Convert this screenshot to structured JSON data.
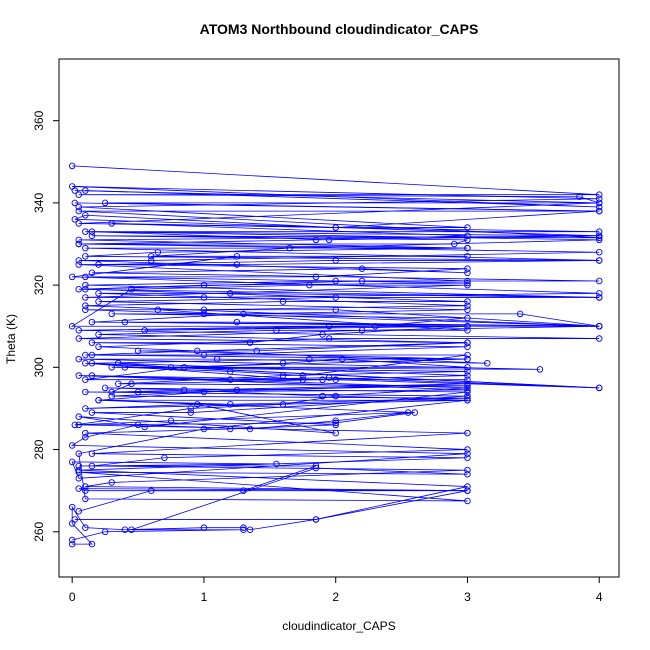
{
  "chart_data": {
    "type": "line",
    "title": "ATOM3 Northbound cloudindicator_CAPS",
    "xlabel": "cloudindicator_CAPS",
    "ylabel": "Theta (K)",
    "xlim": [
      -0.1,
      4.15
    ],
    "ylim": [
      249,
      375
    ],
    "xticks": [
      0,
      1,
      2,
      3,
      4
    ],
    "yticks": [
      260,
      280,
      300,
      320,
      340,
      360
    ],
    "grid": false,
    "legend": "none",
    "series_color": "#0000ff",
    "marker": "open-circle",
    "series": [
      {
        "values": [
          [
            0,
            257
          ],
          [
            0.15,
            257
          ],
          [
            0,
            262
          ],
          [
            0,
            266
          ],
          [
            0.1,
            261
          ],
          [
            0.4,
            260.5
          ],
          [
            1.0,
            261
          ],
          [
            1.3,
            261
          ],
          [
            1.35,
            260.5
          ],
          [
            1.85,
            263
          ],
          [
            3.0,
            270
          ],
          [
            0.05,
            270.5
          ],
          [
            0.1,
            270
          ],
          [
            1.3,
            270
          ],
          [
            1.85,
            276
          ],
          [
            0.05,
            276
          ],
          [
            1.55,
            276.5
          ],
          [
            0,
            277
          ],
          [
            0.05,
            273
          ],
          [
            3.0,
            279
          ],
          [
            0,
            281
          ],
          [
            0.1,
            283
          ],
          [
            0.5,
            286
          ],
          [
            1.35,
            285
          ],
          [
            2.0,
            287
          ],
          [
            2.55,
            289
          ],
          [
            0.75,
            287
          ],
          [
            0.02,
            286
          ],
          [
            0.9,
            290
          ],
          [
            1.6,
            291
          ],
          [
            2.0,
            293
          ],
          [
            3.0,
            292
          ],
          [
            0.2,
            292
          ],
          [
            1.0,
            294
          ],
          [
            3.0,
            296
          ],
          [
            0.3,
            294
          ],
          [
            0.45,
            296
          ],
          [
            1.9,
            297
          ],
          [
            3.0,
            297
          ],
          [
            0.1,
            297
          ],
          [
            0.85,
            300
          ],
          [
            1.6,
            301
          ],
          [
            2.05,
            302
          ],
          [
            3.0,
            300
          ],
          [
            0.4,
            300
          ],
          [
            1.2,
            299
          ],
          [
            1.75,
            298
          ],
          [
            3.0,
            303
          ],
          [
            0.15,
            303
          ],
          [
            1.0,
            303
          ],
          [
            3.0,
            305
          ],
          [
            0.15,
            306
          ],
          [
            1.35,
            306
          ],
          [
            1.9,
            308
          ],
          [
            3.0,
            310
          ],
          [
            0.55,
            309
          ],
          [
            2.3,
            310
          ],
          [
            3.0,
            312
          ],
          [
            0.3,
            313
          ],
          [
            1.0,
            313
          ],
          [
            3.4,
            313
          ],
          [
            4.0,
            310
          ],
          [
            0,
            310
          ],
          [
            0.45,
            319
          ],
          [
            1.8,
            320
          ],
          [
            3.0,
            320
          ],
          [
            0.1,
            317
          ],
          [
            1.0,
            317
          ],
          [
            4.0,
            318
          ],
          [
            0,
            322
          ],
          [
            1.25,
            327
          ],
          [
            3.0,
            327
          ],
          [
            0.6,
            327
          ],
          [
            1.65,
            329
          ],
          [
            4.0,
            331
          ],
          [
            0.15,
            333
          ],
          [
            1.95,
            331
          ],
          [
            3.0,
            332
          ],
          [
            0.3,
            335
          ],
          [
            2.0,
            334
          ],
          [
            4.0,
            338
          ],
          [
            0.25,
            340
          ],
          [
            4.0,
            340
          ],
          [
            3.85,
            341.5
          ],
          [
            0.05,
            342
          ],
          [
            4.0,
            342
          ],
          [
            0,
            349
          ]
        ]
      },
      {
        "values": [
          [
            0,
            258
          ],
          [
            0.25,
            260
          ],
          [
            1.3,
            260.5
          ],
          [
            0.45,
            260.5
          ],
          [
            1.85,
            275.5
          ],
          [
            3.0,
            274
          ],
          [
            0.05,
            274.5
          ],
          [
            3.0,
            267.5
          ],
          [
            0.1,
            268
          ],
          [
            0.05,
            279
          ],
          [
            1.0,
            285
          ],
          [
            3.0,
            292
          ],
          [
            0.1,
            290
          ],
          [
            0.95,
            291
          ],
          [
            2.0,
            284
          ],
          [
            0.05,
            288
          ],
          [
            0.55,
            285.5
          ],
          [
            3.0,
            294
          ],
          [
            0.25,
            295
          ],
          [
            0.85,
            294.5
          ],
          [
            1.9,
            293
          ],
          [
            3.0,
            295
          ],
          [
            0.15,
            298
          ],
          [
            1.2,
            297
          ],
          [
            1.95,
            297.5
          ],
          [
            4.0,
            295
          ],
          [
            0.1,
            301
          ],
          [
            1.75,
            297
          ],
          [
            3.0,
            298
          ],
          [
            0.35,
            301
          ],
          [
            0.75,
            300
          ],
          [
            3.0,
            302
          ],
          [
            0.5,
            304
          ],
          [
            1.4,
            304
          ],
          [
            3.0,
            306
          ],
          [
            0.2,
            308
          ],
          [
            1.55,
            309
          ],
          [
            3.0,
            309
          ],
          [
            0.65,
            314
          ],
          [
            2.0,
            314
          ],
          [
            4.0,
            310
          ],
          [
            0.1,
            315
          ],
          [
            1.6,
            316
          ],
          [
            3.0,
            316
          ],
          [
            0.1,
            319
          ],
          [
            2.2,
            321
          ],
          [
            3.0,
            321
          ],
          [
            0.05,
            325
          ],
          [
            1.25,
            325
          ],
          [
            4.0,
            326
          ],
          [
            0.1,
            327
          ],
          [
            0.65,
            328
          ],
          [
            3.0,
            329
          ],
          [
            0.05,
            330
          ],
          [
            1.85,
            331
          ],
          [
            4.0,
            332
          ],
          [
            0.02,
            336
          ],
          [
            0.1,
            337
          ],
          [
            2.0,
            334
          ],
          [
            3.0,
            334
          ],
          [
            0.05,
            339
          ],
          [
            4.0,
            341
          ],
          [
            0,
            344
          ],
          [
            4.0,
            339
          ],
          [
            0.1,
            343
          ]
        ]
      },
      {
        "values": [
          [
            0.02,
            263
          ],
          [
            1.85,
            263
          ],
          [
            3.0,
            271
          ],
          [
            0.05,
            275
          ],
          [
            3.0,
            278
          ],
          [
            0.15,
            279
          ],
          [
            3.0,
            284
          ],
          [
            0.05,
            286
          ],
          [
            2.0,
            286.5
          ],
          [
            2.6,
            289
          ],
          [
            0.2,
            292
          ],
          [
            1.2,
            291
          ],
          [
            3.0,
            292.5
          ],
          [
            0.3,
            293
          ],
          [
            1.25,
            294.5
          ],
          [
            3.0,
            295.5
          ],
          [
            0.35,
            296
          ],
          [
            1.6,
            298
          ],
          [
            3.0,
            299
          ],
          [
            0.3,
            300
          ],
          [
            3.55,
            299.5
          ],
          [
            0.05,
            302
          ],
          [
            1.1,
            302
          ],
          [
            3.15,
            301
          ],
          [
            0.2,
            305
          ],
          [
            1.95,
            307
          ],
          [
            4.0,
            307
          ],
          [
            0.05,
            309
          ],
          [
            1.95,
            310
          ],
          [
            3.0,
            310
          ],
          [
            0.4,
            311
          ],
          [
            1.25,
            311
          ],
          [
            4.0,
            310
          ],
          [
            0.1,
            314
          ],
          [
            1.0,
            314
          ],
          [
            3.0,
            315
          ],
          [
            0.2,
            318
          ],
          [
            1.2,
            318
          ],
          [
            4.0,
            317
          ],
          [
            0.1,
            320
          ],
          [
            2.0,
            321
          ],
          [
            4.0,
            321
          ],
          [
            0.15,
            323
          ],
          [
            2.2,
            324
          ],
          [
            3.0,
            323
          ],
          [
            0.05,
            326
          ],
          [
            0.6,
            326
          ],
          [
            4.0,
            328
          ],
          [
            0.05,
            330
          ],
          [
            2.9,
            330
          ],
          [
            3.0,
            331
          ],
          [
            0.15,
            332
          ],
          [
            4.0,
            331.5
          ],
          [
            0.05,
            338
          ],
          [
            4.0,
            338
          ],
          [
            0.02,
            340
          ]
        ]
      },
      {
        "values": [
          [
            0.05,
            265
          ],
          [
            0.6,
            270
          ],
          [
            3.0,
            270
          ],
          [
            0.1,
            271
          ],
          [
            0.3,
            272
          ],
          [
            3.0,
            275
          ],
          [
            0.15,
            276
          ],
          [
            0.7,
            278
          ],
          [
            3.0,
            280
          ],
          [
            0.1,
            284
          ],
          [
            1.2,
            285
          ],
          [
            2.0,
            286
          ],
          [
            0.15,
            289
          ],
          [
            0.9,
            289
          ],
          [
            3.0,
            293
          ],
          [
            0.1,
            294
          ],
          [
            0.5,
            294
          ],
          [
            3.0,
            294.5
          ],
          [
            0.05,
            298
          ],
          [
            2.0,
            297
          ],
          [
            4.0,
            295
          ],
          [
            0.15,
            301
          ],
          [
            1.8,
            302
          ],
          [
            3.0,
            302
          ],
          [
            0.1,
            303
          ],
          [
            0.95,
            304
          ],
          [
            3.0,
            306
          ],
          [
            0.05,
            307
          ],
          [
            2.2,
            309
          ],
          [
            4.0,
            310
          ],
          [
            0.15,
            311
          ],
          [
            1.3,
            313
          ],
          [
            3.0,
            314
          ],
          [
            0.2,
            316
          ],
          [
            2.0,
            317
          ],
          [
            4.0,
            317
          ],
          [
            0.05,
            319
          ],
          [
            1.0,
            320
          ],
          [
            3.0,
            320.5
          ],
          [
            0.1,
            322
          ],
          [
            1.85,
            322
          ],
          [
            3.0,
            324
          ],
          [
            0.2,
            325
          ],
          [
            2.0,
            326
          ],
          [
            4.0,
            326
          ],
          [
            0.1,
            329
          ],
          [
            3.0,
            329
          ],
          [
            0.05,
            331
          ],
          [
            4.0,
            332
          ],
          [
            0.1,
            333
          ],
          [
            4.0,
            333
          ],
          [
            0.05,
            335
          ],
          [
            4.0,
            340
          ],
          [
            0.02,
            343
          ]
        ]
      }
    ]
  }
}
